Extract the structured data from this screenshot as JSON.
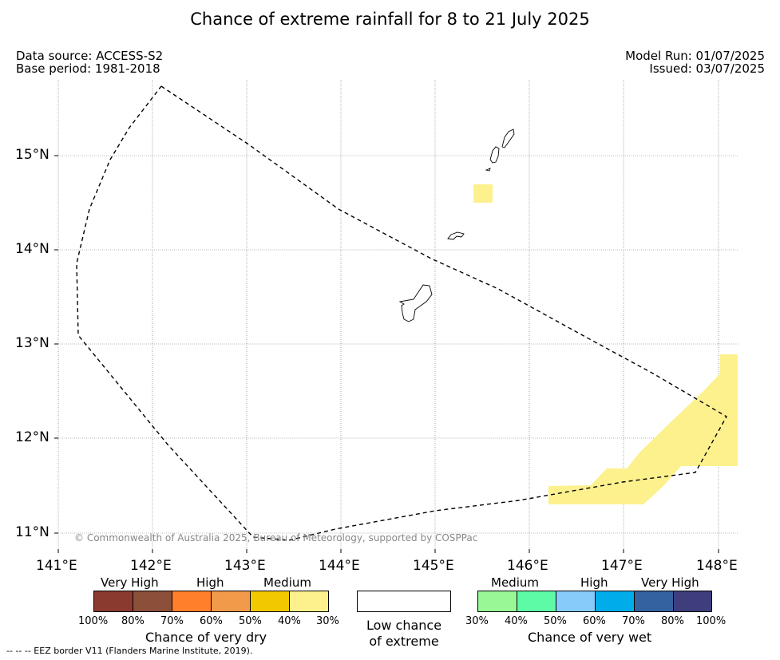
{
  "title": "Chance of extreme rainfall for 8 to 21 July 2025",
  "header": {
    "data_source": "Data source: ACCESS-S2",
    "base_period": "Base period: 1981-2018",
    "model_run": "Model Run: 01/07/2025",
    "issued": "Issued: 03/07/2025"
  },
  "map": {
    "lat_labels": [
      "15°N",
      "14°N",
      "13°N",
      "12°N",
      "11°N"
    ],
    "lon_labels": [
      "141°E",
      "142°E",
      "143°E",
      "144°E",
      "145°E",
      "146°E",
      "147°E",
      "148°E"
    ],
    "copyright": "© Commonwealth of Australia 2025, Bureau of Meteorology, supported by COSPPac",
    "forecast_area_color": "#fdf18e",
    "gridlines": true
  },
  "legend": {
    "dry": {
      "categories": [
        "Very High",
        "High",
        "Medium"
      ],
      "colors": [
        "#8b3a2f",
        "#8c4f3a",
        "#ff7f2a",
        "#f19a4a",
        "#f2c900",
        "#fdf18e"
      ],
      "ticks": [
        "100%",
        "80%",
        "70%",
        "60%",
        "50%",
        "40%",
        "30%"
      ],
      "title": "Chance of very dry"
    },
    "neutral": {
      "line1": "Low chance",
      "line2": "of extreme",
      "color": "#ffffff"
    },
    "wet": {
      "categories": [
        "Medium",
        "High",
        "Very High"
      ],
      "colors": [
        "#99f796",
        "#5dfba6",
        "#87cbfb",
        "#00adea",
        "#3461a0",
        "#3e3e7c"
      ],
      "ticks": [
        "30%",
        "40%",
        "50%",
        "60%",
        "70%",
        "80%",
        "100%"
      ],
      "title": "Chance of very wet"
    }
  },
  "eez_note": "--  --  -- EEZ border V11 (Flanders Marine Institute, 2019)."
}
